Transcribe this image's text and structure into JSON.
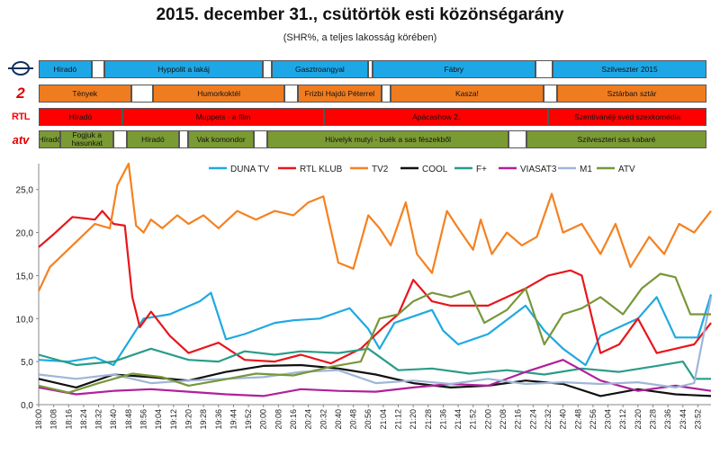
{
  "header": {
    "title": "2015. december 31., csütörtök esti közönségarány",
    "subtitle": "(SHR%, a teljes lakosság körében)"
  },
  "channel_logos": [
    {
      "name": "m1-logo",
      "text": ""
    },
    {
      "name": "tv2-logo",
      "text": "2"
    },
    {
      "name": "rtl-klub-logo",
      "text": "RTL"
    },
    {
      "name": "atv-logo",
      "text": "atv"
    }
  ],
  "schedule": {
    "rows": [
      {
        "channel": "M1",
        "color": "#1ea7e6",
        "programs": [
          {
            "label": "Híradó",
            "start": 0,
            "end": 12
          },
          {
            "label": "",
            "start": 12,
            "end": 15
          },
          {
            "label": "Hyppolit a lakáj",
            "start": 15,
            "end": 51
          },
          {
            "label": "",
            "start": 51,
            "end": 53
          },
          {
            "label": "Gasztroangyal",
            "start": 53,
            "end": 75
          },
          {
            "label": "",
            "start": 75,
            "end": 76
          },
          {
            "label": "Fábry",
            "start": 76,
            "end": 113
          },
          {
            "label": "",
            "start": 113,
            "end": 117
          },
          {
            "label": "Szilveszter 2015",
            "start": 117,
            "end": 152
          }
        ]
      },
      {
        "channel": "TV2",
        "color": "#f07c20",
        "programs": [
          {
            "label": "Tények",
            "start": 0,
            "end": 21
          },
          {
            "label": "",
            "start": 21,
            "end": 26
          },
          {
            "label": "Humorkoktél",
            "start": 26,
            "end": 56
          },
          {
            "label": "",
            "start": 56,
            "end": 59
          },
          {
            "label": "Frizbi Hajdú Péterrel",
            "start": 59,
            "end": 78
          },
          {
            "label": "",
            "start": 78,
            "end": 80
          },
          {
            "label": "Kasza!",
            "start": 80,
            "end": 115
          },
          {
            "label": "",
            "start": 115,
            "end": 118
          },
          {
            "label": "Sztárban sztár",
            "start": 118,
            "end": 152
          }
        ]
      },
      {
        "channel": "RTL KLUB",
        "color": "#ff0000",
        "programs": [
          {
            "label": "Híradó",
            "start": 0,
            "end": 19
          },
          {
            "label": "Muppets - a film",
            "start": 19,
            "end": 65
          },
          {
            "label": "Apácashow 2.",
            "start": 65,
            "end": 116
          },
          {
            "label": "Szentivánéji svéd szexkomédia",
            "start": 116,
            "end": 152
          }
        ]
      },
      {
        "channel": "ATV",
        "color": "#7a9a34",
        "programs": [
          {
            "label": "Híradó",
            "start": 0,
            "end": 5
          },
          {
            "label": "Fogjuk a hasunkat",
            "start": 5,
            "end": 17
          },
          {
            "label": "",
            "start": 17,
            "end": 20
          },
          {
            "label": "Híradó",
            "start": 20,
            "end": 32
          },
          {
            "label": "",
            "start": 32,
            "end": 34
          },
          {
            "label": "Vak komondor",
            "start": 34,
            "end": 49
          },
          {
            "label": "",
            "start": 49,
            "end": 52
          },
          {
            "label": "Hüvelyk mutyi - buék a sas fészekből",
            "start": 52,
            "end": 107
          },
          {
            "label": "",
            "start": 107,
            "end": 111
          },
          {
            "label": "Szilveszteri sas kabaré",
            "start": 111,
            "end": 152
          }
        ]
      }
    ]
  },
  "chart_data": {
    "type": "line",
    "title": "",
    "xlabel": "",
    "ylabel": "",
    "ylim": [
      0,
      28
    ],
    "yticks": [
      "0,0",
      "5,0",
      "10,0",
      "15,0",
      "20,0",
      "25,0"
    ],
    "legend_position": "top",
    "x_tick_labels": [
      "18:00",
      "18:08",
      "18:16",
      "18:24",
      "18:32",
      "18:40",
      "18:48",
      "18:56",
      "19:04",
      "19:12",
      "19:20",
      "19:28",
      "19:36",
      "19:44",
      "19:52",
      "20:00",
      "20:08",
      "20:16",
      "20:24",
      "20:32",
      "20:40",
      "20:48",
      "20:56",
      "21:04",
      "21:12",
      "21:20",
      "21:28",
      "21:36",
      "21:44",
      "21:52",
      "22:00",
      "22:08",
      "22:16",
      "22:24",
      "22:32",
      "22:40",
      "22:48",
      "22:56",
      "23:04",
      "23:12",
      "23:20",
      "23:28",
      "23:36",
      "23:44",
      "23:52"
    ],
    "x_start_minute": 1080,
    "x_end_minute": 1439,
    "series": [
      {
        "name": "DUNA TV",
        "color": "#1fa9e1",
        "x": [
          1080,
          1096,
          1110,
          1120,
          1136,
          1150,
          1166,
          1172,
          1180,
          1190,
          1206,
          1216,
          1230,
          1246,
          1256,
          1262,
          1270,
          1290,
          1296,
          1304,
          1320,
          1340,
          1350,
          1360,
          1372,
          1380,
          1400,
          1410,
          1420,
          1432,
          1439
        ],
        "y": [
          5.2,
          5.0,
          5.5,
          4.6,
          10.0,
          10.5,
          12.0,
          13.0,
          7.6,
          8.2,
          9.5,
          9.8,
          10.0,
          11.2,
          8.8,
          6.5,
          9.5,
          11.0,
          8.6,
          7.0,
          8.2,
          11.5,
          8.6,
          6.5,
          4.6,
          8.0,
          10.0,
          12.5,
          7.8,
          7.8,
          12.8
        ]
      },
      {
        "name": "RTL KLUB",
        "color": "#e8161b",
        "x": [
          1080,
          1088,
          1098,
          1110,
          1114,
          1120,
          1126,
          1130,
          1134,
          1140,
          1150,
          1160,
          1176,
          1190,
          1206,
          1220,
          1236,
          1252,
          1264,
          1272,
          1280,
          1290,
          1300,
          1320,
          1340,
          1352,
          1364,
          1370,
          1380,
          1390,
          1400,
          1410,
          1420,
          1430,
          1439
        ],
        "y": [
          18.3,
          19.8,
          21.8,
          21.5,
          22.5,
          21.0,
          20.8,
          12.5,
          9.0,
          10.8,
          8.0,
          6.0,
          7.2,
          5.2,
          5.0,
          5.8,
          4.8,
          6.5,
          9.0,
          10.5,
          14.5,
          12.0,
          11.5,
          11.5,
          13.5,
          15.0,
          15.6,
          15.0,
          6.0,
          7.0,
          10.0,
          6.0,
          6.5,
          7.0,
          9.5
        ]
      },
      {
        "name": "TV2",
        "color": "#f5811f",
        "x": [
          1080,
          1086,
          1098,
          1110,
          1118,
          1122,
          1128,
          1132,
          1136,
          1140,
          1146,
          1154,
          1160,
          1168,
          1176,
          1186,
          1196,
          1206,
          1216,
          1224,
          1232,
          1240,
          1248,
          1256,
          1262,
          1268,
          1276,
          1282,
          1290,
          1298,
          1304,
          1312,
          1316,
          1322,
          1330,
          1338,
          1346,
          1354,
          1360,
          1370,
          1380,
          1388,
          1396,
          1406,
          1414,
          1422,
          1430,
          1439
        ],
        "y": [
          13.2,
          16.0,
          18.5,
          21.0,
          20.5,
          25.5,
          28.0,
          20.8,
          20.0,
          21.5,
          20.5,
          22.0,
          21.0,
          22.0,
          20.5,
          22.5,
          21.5,
          22.5,
          22.0,
          23.5,
          24.2,
          16.5,
          15.8,
          22.0,
          20.5,
          18.5,
          23.5,
          17.5,
          15.3,
          22.5,
          20.5,
          18.0,
          21.5,
          17.5,
          20.0,
          18.5,
          19.5,
          24.5,
          20.0,
          21.0,
          17.5,
          21.0,
          16.0,
          19.5,
          17.5,
          21.0,
          20.0,
          22.5
        ]
      },
      {
        "name": "COOL",
        "color": "#111111",
        "x": [
          1080,
          1100,
          1120,
          1140,
          1160,
          1180,
          1200,
          1220,
          1240,
          1260,
          1280,
          1300,
          1320,
          1340,
          1360,
          1380,
          1400,
          1420,
          1439
        ],
        "y": [
          3.0,
          2.0,
          3.5,
          3.2,
          2.8,
          3.8,
          4.5,
          4.6,
          4.2,
          3.5,
          2.5,
          2.0,
          2.2,
          2.8,
          2.4,
          1.0,
          1.8,
          1.2,
          1.0
        ]
      },
      {
        "name": "F+",
        "color": "#2a9c88",
        "x": [
          1080,
          1100,
          1120,
          1140,
          1160,
          1176,
          1190,
          1206,
          1220,
          1240,
          1256,
          1272,
          1290,
          1310,
          1330,
          1350,
          1370,
          1390,
          1410,
          1424,
          1430,
          1439
        ],
        "y": [
          5.8,
          4.6,
          5.0,
          6.5,
          5.2,
          5.0,
          6.2,
          5.8,
          6.2,
          6.0,
          6.5,
          4.0,
          4.2,
          3.6,
          4.0,
          3.5,
          4.2,
          3.8,
          4.5,
          5.0,
          3.0,
          3.0
        ]
      },
      {
        "name": "VIASAT3",
        "color": "#b0209a",
        "x": [
          1080,
          1100,
          1120,
          1140,
          1160,
          1180,
          1200,
          1220,
          1240,
          1260,
          1280,
          1300,
          1320,
          1340,
          1360,
          1380,
          1400,
          1420,
          1439
        ],
        "y": [
          2.0,
          1.2,
          1.6,
          1.8,
          1.5,
          1.2,
          1.0,
          1.8,
          1.6,
          1.5,
          2.0,
          2.4,
          2.2,
          3.8,
          5.2,
          2.8,
          1.6,
          2.2,
          1.6
        ]
      },
      {
        "name": "M1",
        "color": "#9fb6d8",
        "x": [
          1080,
          1100,
          1120,
          1140,
          1160,
          1180,
          1200,
          1220,
          1240,
          1260,
          1280,
          1300,
          1320,
          1340,
          1360,
          1380,
          1400,
          1420,
          1430,
          1439
        ],
        "y": [
          3.5,
          3.0,
          3.5,
          2.5,
          2.8,
          3.0,
          3.2,
          3.8,
          4.0,
          2.5,
          2.8,
          2.4,
          3.0,
          2.4,
          2.6,
          2.4,
          2.6,
          2.0,
          2.5,
          12.5
        ]
      },
      {
        "name": "ATV",
        "color": "#78973a",
        "x": [
          1080,
          1096,
          1112,
          1130,
          1146,
          1160,
          1176,
          1196,
          1216,
          1236,
          1252,
          1262,
          1272,
          1280,
          1290,
          1300,
          1310,
          1318,
          1330,
          1340,
          1350,
          1360,
          1370,
          1380,
          1392,
          1402,
          1412,
          1420,
          1428,
          1434,
          1439
        ],
        "y": [
          2.2,
          1.4,
          2.5,
          3.6,
          3.2,
          2.2,
          2.8,
          3.6,
          3.4,
          4.4,
          5.0,
          10.0,
          10.5,
          12.0,
          13.0,
          12.5,
          13.2,
          9.5,
          11.0,
          13.5,
          7.0,
          10.5,
          11.2,
          12.5,
          10.5,
          13.5,
          15.2,
          14.8,
          10.5,
          10.5,
          10.5
        ]
      }
    ]
  }
}
